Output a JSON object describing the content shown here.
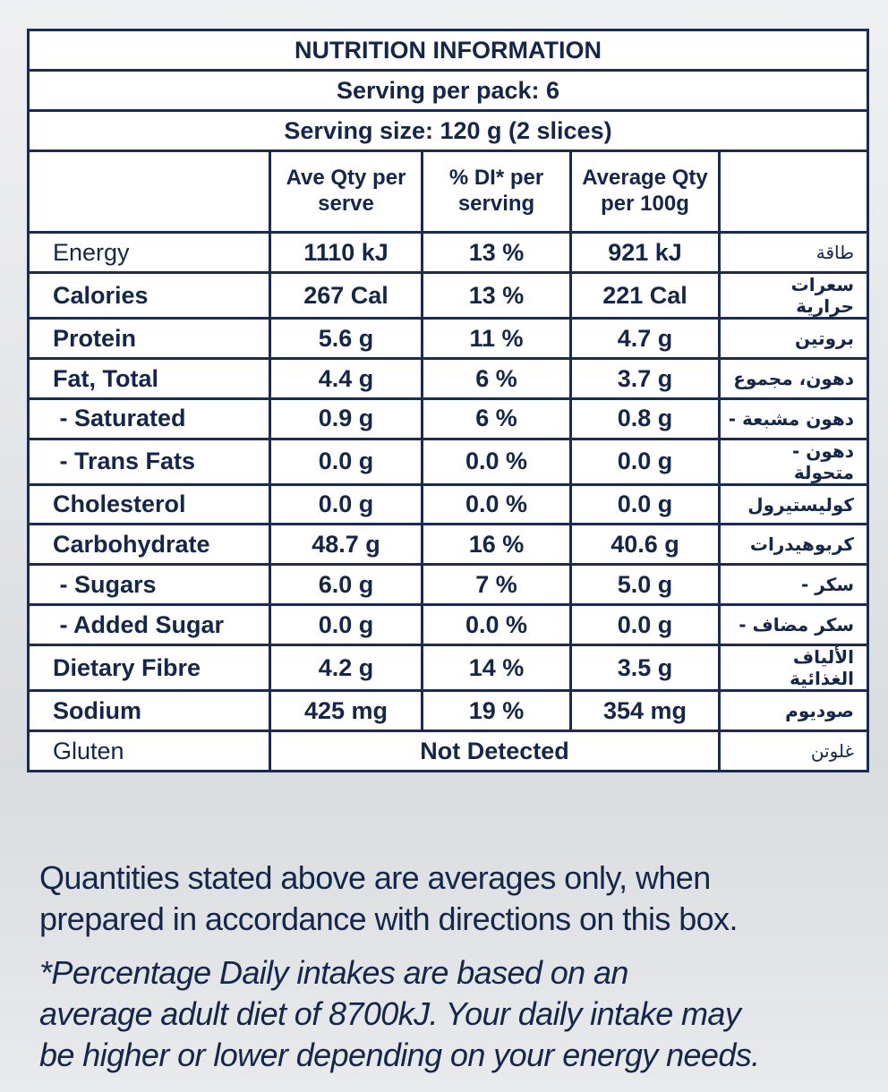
{
  "header": {
    "title": "NUTRITION INFORMATION",
    "serving_per_pack": "Serving per pack: 6",
    "serving_size": "Serving size: 120 g (2 slices)"
  },
  "table": {
    "columns": [
      "Ave Qty per serve",
      "% DI* per serving",
      "Average Qty per 100g"
    ],
    "rows": [
      [
        "Energy",
        "1110 kJ",
        "13 %",
        "921 kJ",
        "طاقة"
      ],
      [
        "Calories",
        "267 Cal",
        "13 %",
        "221 Cal",
        "سعرات حرارية"
      ],
      [
        "Protein",
        "5.6 g",
        "11 %",
        "4.7 g",
        "بروتين"
      ],
      [
        "Fat, Total",
        "4.4 g",
        "6 %",
        "3.7 g",
        "دهون، مجموع"
      ],
      [
        " - Saturated",
        "0.9 g",
        "6 %",
        "0.8 g",
        "- دهون مشبعة"
      ],
      [
        " - Trans Fats",
        "0.0 g",
        "0.0 %",
        "0.0 g",
        "- دهون متحولة"
      ],
      [
        "Cholesterol",
        "0.0 g",
        "0.0 %",
        "0.0 g",
        "كوليستيرول"
      ],
      [
        "Carbohydrate",
        "48.7 g",
        "16 %",
        "40.6 g",
        "كربوهيدرات"
      ],
      [
        " - Sugars",
        "6.0 g",
        "7 %",
        "5.0 g",
        "- سكر"
      ],
      [
        " - Added Sugar",
        "0.0 g",
        "0.0 %",
        "0.0 g",
        "- سكر مضاف"
      ],
      [
        "Dietary Fibre",
        "4.2 g",
        "14 %",
        "3.5 g",
        "الألياف الغذائية"
      ],
      [
        "Sodium",
        "425 mg",
        "19 %",
        "354 mg",
        "صوديوم"
      ],
      [
        "Gluten",
        "Not Detected",
        "غلوتن"
      ]
    ]
  },
  "footer": {
    "averages": [
      "Quantities stated above are averages only, when",
      "prepared in accordance with directions on this box."
    ],
    "note": [
      "*Percentage Daily intakes are based on an",
      "average adult diet of 8700kJ. Your daily intake may",
      "be higher or lower depending on your energy needs."
    ]
  }
}
